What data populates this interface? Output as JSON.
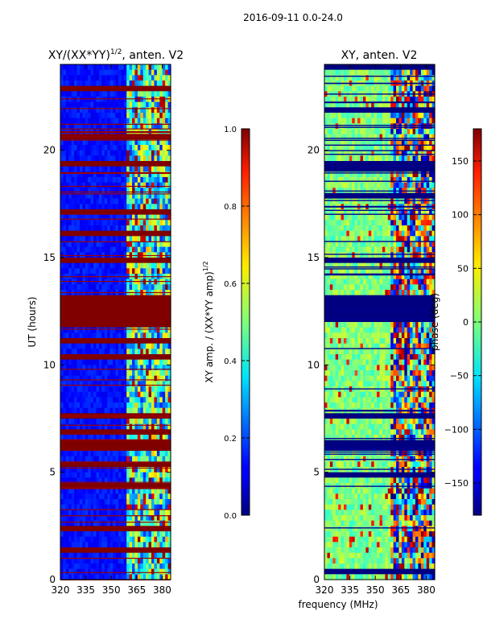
{
  "figure": {
    "suptitle": "2016-09-11 0.0-24.0",
    "xlabel_shared": "frequency (MHz)"
  },
  "chart_data": [
    {
      "type": "heatmap",
      "title_main": "XY/(XX*YY)",
      "title_sup": "1/2",
      "title_rest": ", anten. V2",
      "xlabel": "",
      "ylabel": "UT (hours)",
      "xlim": [
        320,
        385
      ],
      "ylim": [
        0,
        24
      ],
      "xticks": [
        320,
        335,
        350,
        365,
        380
      ],
      "yticks": [
        0,
        5,
        10,
        15,
        20
      ],
      "colorbar": {
        "label_main": "XY amp. / (XX*YY amp)",
        "label_sup": "1/2",
        "range": [
          0.0,
          1.0
        ],
        "ticks": [
          0.0,
          0.2,
          0.4,
          0.6,
          0.8,
          1.0
        ],
        "tick_labels": [
          "0.0",
          "0.2",
          "0.4",
          "0.6",
          "0.8",
          "1.0"
        ],
        "colormap": "jet"
      },
      "flagged_bands_hours": [
        [
          11.9,
          13.3
        ],
        [
          14.8,
          15.0
        ],
        [
          16.1,
          16.3
        ],
        [
          19.2,
          19.5
        ],
        [
          6.1,
          6.6
        ],
        [
          7.6,
          7.8
        ],
        [
          17.1,
          17.3
        ]
      ],
      "bright_freq_band_mhz": [
        359,
        385
      ]
    },
    {
      "type": "heatmap",
      "title_main": "XY, anten. V2",
      "xlabel": "",
      "ylabel": "",
      "xlim": [
        320,
        385
      ],
      "ylim": [
        0,
        24
      ],
      "xticks": [
        320,
        335,
        350,
        365,
        380
      ],
      "yticks": [
        0,
        5,
        10,
        15,
        20
      ],
      "colorbar": {
        "label_main": "phase (deg)",
        "range": [
          -180,
          180
        ],
        "ticks": [
          -150,
          -100,
          -50,
          0,
          50,
          100,
          150
        ],
        "tick_labels": [
          "−150",
          "−100",
          "−50",
          "0",
          "50",
          "100",
          "150"
        ],
        "colormap": "jet"
      },
      "flagged_bands_hours": [
        [
          11.9,
          13.3
        ],
        [
          14.8,
          15.0
        ],
        [
          6.1,
          6.6
        ],
        [
          7.6,
          7.8
        ],
        [
          19.2,
          19.5
        ]
      ]
    }
  ]
}
